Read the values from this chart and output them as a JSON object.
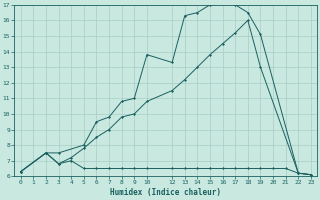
{
  "xlabel": "Humidex (Indice chaleur)",
  "bg_color": "#c8e8e0",
  "grid_color": "#a8ccc4",
  "line_color": "#1a6060",
  "xlim": [
    -0.5,
    23.5
  ],
  "ylim": [
    6,
    17
  ],
  "xticks": [
    0,
    1,
    2,
    3,
    4,
    5,
    6,
    7,
    8,
    9,
    10,
    12,
    13,
    14,
    15,
    16,
    17,
    18,
    19,
    20,
    21,
    22,
    23
  ],
  "yticks": [
    6,
    7,
    8,
    9,
    10,
    11,
    12,
    13,
    14,
    15,
    16,
    17
  ],
  "line1_x": [
    0,
    2,
    3,
    5,
    6,
    7,
    8,
    9,
    10,
    12,
    13,
    14,
    15,
    16,
    17,
    18,
    19,
    22,
    23
  ],
  "line1_y": [
    6.3,
    7.5,
    7.5,
    8.0,
    9.5,
    9.8,
    10.8,
    11.0,
    13.8,
    13.3,
    16.3,
    16.5,
    17.0,
    17.2,
    17.0,
    16.5,
    15.1,
    6.2,
    6.1
  ],
  "line2_x": [
    0,
    2,
    3,
    4,
    5,
    6,
    7,
    8,
    9,
    10,
    12,
    13,
    14,
    15,
    16,
    17,
    18,
    19,
    22,
    23
  ],
  "line2_y": [
    6.3,
    7.5,
    6.8,
    7.2,
    7.8,
    8.5,
    9.0,
    9.8,
    10.0,
    10.8,
    11.5,
    12.2,
    13.0,
    13.8,
    14.5,
    15.2,
    16.0,
    13.0,
    6.2,
    6.1
  ],
  "line3_x": [
    0,
    2,
    3,
    4,
    5,
    6,
    7,
    8,
    9,
    10,
    12,
    13,
    14,
    15,
    16,
    17,
    18,
    19,
    20,
    21,
    22,
    23
  ],
  "line3_y": [
    6.3,
    7.5,
    6.8,
    7.0,
    6.5,
    6.5,
    6.5,
    6.5,
    6.5,
    6.5,
    6.5,
    6.5,
    6.5,
    6.5,
    6.5,
    6.5,
    6.5,
    6.5,
    6.5,
    6.5,
    6.2,
    6.1
  ]
}
